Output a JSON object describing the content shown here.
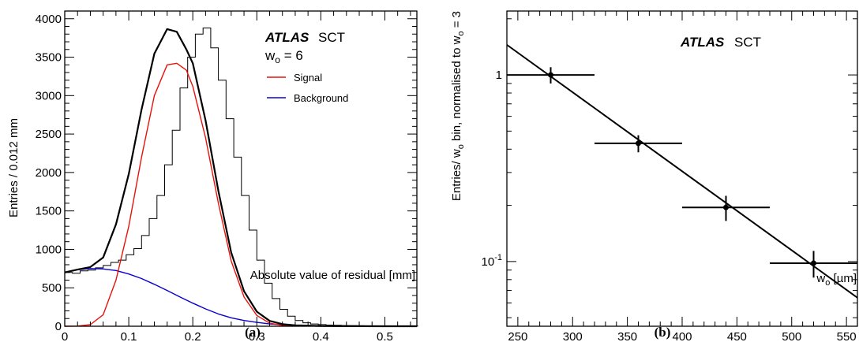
{
  "colors": {
    "signal": "#e8120c",
    "background": "#0a00d2",
    "data": "#000000",
    "frame": "#000000"
  },
  "chart_data": [
    {
      "type": "line",
      "panel": "(a)",
      "label_atlas": "ATLAS",
      "label_detector": "SCT",
      "label_wo": "w",
      "label_wo_sub": "o",
      "label_wo_eq": " = 6",
      "xlabel": "Absolute value of residual [mm]",
      "ylabel": "Entries / 0.012 mm",
      "xlim": [
        0,
        0.55
      ],
      "ylim": [
        0,
        4100
      ],
      "x_ticks": [
        0,
        0.1,
        0.2,
        0.3,
        0.4,
        0.5
      ],
      "x_tick_labels": [
        "0",
        "0.1",
        "0.2",
        "0.3",
        "0.4",
        "0.5"
      ],
      "y_ticks": [
        0,
        500,
        1000,
        1500,
        2000,
        2500,
        3000,
        3500,
        4000
      ],
      "y_tick_labels": [
        "0",
        "500",
        "1000",
        "1500",
        "2000",
        "2500",
        "3000",
        "3500",
        "4000"
      ],
      "legend_location": "top-right",
      "series": [
        {
          "name": "Signal",
          "color": "#e8120c",
          "x": [
            0,
            0.02,
            0.04,
            0.06,
            0.08,
            0.1,
            0.12,
            0.14,
            0.16,
            0.175,
            0.19,
            0.2,
            0.22,
            0.24,
            0.26,
            0.28,
            0.3,
            0.32,
            0.34,
            0.36
          ],
          "values": [
            0,
            2,
            20,
            150,
            600,
            1300,
            2200,
            3000,
            3400,
            3420,
            3330,
            3120,
            2450,
            1600,
            850,
            380,
            140,
            40,
            10,
            2
          ]
        },
        {
          "name": "Background",
          "color": "#0a00d2",
          "x": [
            0,
            0.02,
            0.04,
            0.06,
            0.08,
            0.1,
            0.12,
            0.14,
            0.16,
            0.18,
            0.2,
            0.22,
            0.24,
            0.26,
            0.28,
            0.3,
            0.32,
            0.34,
            0.36,
            0.4
          ],
          "values": [
            700,
            735,
            750,
            745,
            725,
            680,
            620,
            545,
            465,
            380,
            300,
            225,
            160,
            110,
            75,
            50,
            30,
            18,
            10,
            3
          ]
        }
      ],
      "fit_total": {
        "x": [
          0,
          0.02,
          0.04,
          0.06,
          0.08,
          0.1,
          0.12,
          0.14,
          0.16,
          0.175,
          0.19,
          0.2,
          0.22,
          0.24,
          0.26,
          0.28,
          0.3,
          0.32,
          0.34,
          0.36,
          0.4,
          0.45,
          0.5,
          0.55
        ],
        "values": [
          700,
          737,
          770,
          895,
          1325,
          1980,
          2820,
          3545,
          3865,
          3830,
          3600,
          3420,
          2675,
          1760,
          960,
          455,
          190,
          70,
          28,
          12,
          3,
          1,
          0,
          0
        ]
      },
      "histogram": {
        "bin_width": 0.012,
        "edges_start": 0,
        "counts": [
          700,
          690,
          720,
          730,
          760,
          790,
          830,
          860,
          930,
          1010,
          1180,
          1400,
          1700,
          2100,
          2550,
          3100,
          3500,
          3800,
          3880,
          3620,
          3200,
          2700,
          2200,
          1700,
          1250,
          860,
          560,
          360,
          220,
          130,
          75,
          45,
          30,
          22,
          15,
          12,
          9,
          8,
          6,
          5,
          4,
          4,
          3,
          3,
          2,
          2
        ]
      }
    },
    {
      "type": "scatter",
      "panel": "(b)",
      "label_atlas": "ATLAS",
      "label_detector": "SCT",
      "xlabel_main": "w",
      "xlabel_sub": "o",
      "xlabel_rest": " [µm]",
      "ylabel_pre": "Entries/ w",
      "ylabel_sub": "o",
      "ylabel_mid": " bin, normalised to w",
      "ylabel_sub2": "o",
      "ylabel_post": " = 3",
      "xlim": [
        240,
        560
      ],
      "ylim": [
        0.045,
        2.2
      ],
      "yscale": "log",
      "x_ticks": [
        250,
        300,
        350,
        400,
        450,
        500,
        550
      ],
      "x_tick_labels": [
        "250",
        "300",
        "350",
        "400",
        "450",
        "500",
        "550"
      ],
      "y_major_labels": [
        {
          "value": 1,
          "base": "1",
          "exp": ""
        },
        {
          "value": 0.1,
          "base": "10",
          "exp": "-1"
        }
      ],
      "points": {
        "x": [
          280,
          360,
          440,
          520
        ],
        "y": [
          1.0,
          0.43,
          0.195,
          0.098
        ],
        "x_err": [
          40,
          40,
          40,
          40
        ],
        "y_err_up": [
          0.1,
          0.045,
          0.03,
          0.016
        ],
        "y_err_down": [
          0.1,
          0.045,
          0.03,
          0.016
        ]
      },
      "fit_line": {
        "x": [
          240,
          560
        ],
        "y": [
          1.45,
          0.064
        ]
      }
    }
  ],
  "captions": {
    "a": "(a)",
    "b": "(b)"
  }
}
